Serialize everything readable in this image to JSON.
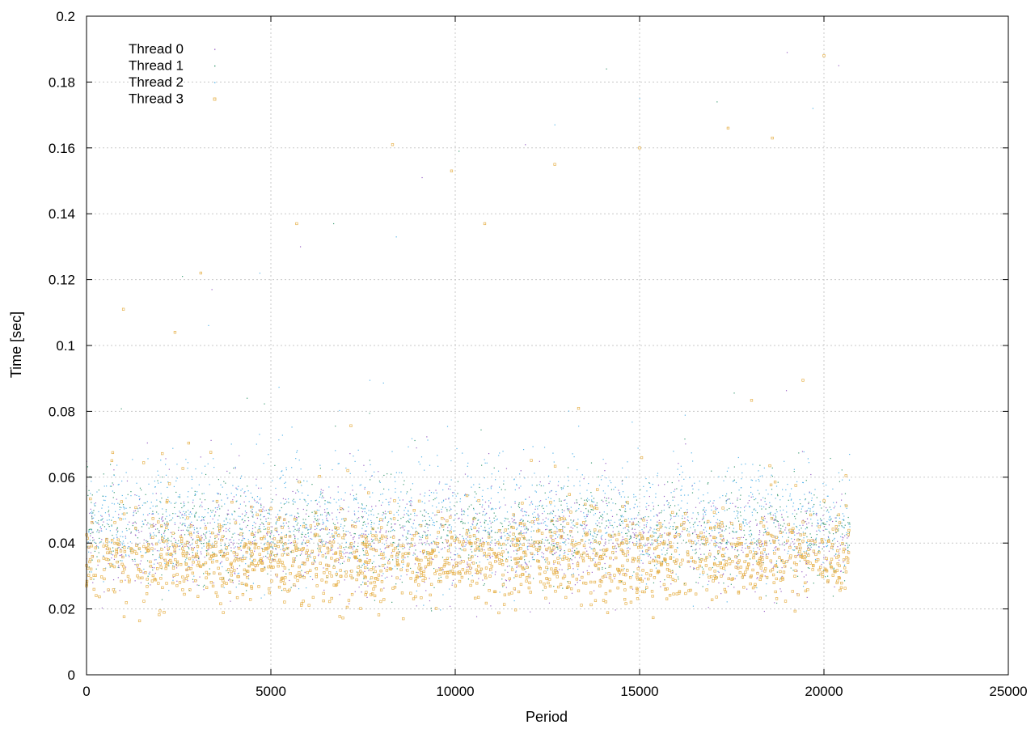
{
  "chart_data": {
    "type": "scatter",
    "xlabel": "Period",
    "ylabel": "Time [sec]",
    "xlim": [
      0,
      25000
    ],
    "ylim": [
      0,
      0.2
    ],
    "x_ticks": [
      0,
      5000,
      10000,
      15000,
      20000,
      25000
    ],
    "y_ticks": [
      0,
      0.02,
      0.04,
      0.06,
      0.08,
      0.1,
      0.12,
      0.14,
      0.16,
      0.18,
      0.2
    ],
    "y_tick_labels": [
      "0",
      "0.02",
      "0.04",
      "0.06",
      "0.08",
      "0.1",
      "0.12",
      "0.14",
      "0.16",
      "0.18",
      "0.2"
    ],
    "grid": true,
    "legend_position": "top-left",
    "x_range_of_data": [
      0,
      20700
    ],
    "series": [
      {
        "name": "Thread 0",
        "color": "#9a63c6",
        "marker": "dot",
        "sample_points": [
          [
            200,
            0.041
          ],
          [
            1200,
            0.043
          ],
          [
            2500,
            0.039
          ],
          [
            4000,
            0.04
          ],
          [
            5500,
            0.042
          ],
          [
            7000,
            0.038
          ],
          [
            8500,
            0.041
          ],
          [
            10000,
            0.04
          ],
          [
            11500,
            0.039
          ],
          [
            13000,
            0.041
          ],
          [
            14500,
            0.04
          ],
          [
            16000,
            0.042
          ],
          [
            17500,
            0.039
          ],
          [
            19000,
            0.04
          ],
          [
            20500,
            0.041
          ],
          [
            3400,
            0.117
          ],
          [
            5800,
            0.13
          ],
          [
            9100,
            0.151
          ],
          [
            11900,
            0.161
          ],
          [
            19000,
            0.189
          ],
          [
            20400,
            0.185
          ]
        ]
      },
      {
        "name": "Thread 1",
        "color": "#3d9c74",
        "marker": "dot",
        "sample_points": [
          [
            300,
            0.044
          ],
          [
            1500,
            0.045
          ],
          [
            3000,
            0.041
          ],
          [
            4500,
            0.043
          ],
          [
            6000,
            0.044
          ],
          [
            7500,
            0.04
          ],
          [
            9000,
            0.043
          ],
          [
            10500,
            0.042
          ],
          [
            12000,
            0.041
          ],
          [
            13500,
            0.043
          ],
          [
            15000,
            0.041
          ],
          [
            16500,
            0.044
          ],
          [
            18000,
            0.042
          ],
          [
            19500,
            0.043
          ],
          [
            20600,
            0.04
          ],
          [
            2600,
            0.121
          ],
          [
            6700,
            0.137
          ],
          [
            10100,
            0.159
          ],
          [
            14100,
            0.184
          ],
          [
            17100,
            0.174
          ]
        ]
      },
      {
        "name": "Thread 2",
        "color": "#56b4e9",
        "marker": "dot",
        "sample_points": [
          [
            400,
            0.047
          ],
          [
            1800,
            0.049
          ],
          [
            3200,
            0.046
          ],
          [
            4800,
            0.048
          ],
          [
            6300,
            0.05
          ],
          [
            7800,
            0.046
          ],
          [
            9300,
            0.048
          ],
          [
            10800,
            0.047
          ],
          [
            12300,
            0.046
          ],
          [
            13800,
            0.049
          ],
          [
            15300,
            0.047
          ],
          [
            16800,
            0.05
          ],
          [
            18300,
            0.048
          ],
          [
            19800,
            0.049
          ],
          [
            20700,
            0.045
          ],
          [
            4700,
            0.122
          ],
          [
            8400,
            0.133
          ],
          [
            12700,
            0.167
          ],
          [
            15000,
            0.175
          ],
          [
            19700,
            0.172
          ]
        ]
      },
      {
        "name": "Thread 3",
        "color": "#e6b14b",
        "marker": "open-square",
        "sample_points": [
          [
            100,
            0.035
          ],
          [
            1000,
            0.033
          ],
          [
            2200,
            0.034
          ],
          [
            3700,
            0.036
          ],
          [
            5200,
            0.033
          ],
          [
            6800,
            0.035
          ],
          [
            8200,
            0.034
          ],
          [
            9700,
            0.033
          ],
          [
            11200,
            0.035
          ],
          [
            12800,
            0.034
          ],
          [
            14200,
            0.033
          ],
          [
            15700,
            0.035
          ],
          [
            17200,
            0.034
          ],
          [
            18700,
            0.033
          ],
          [
            20400,
            0.036
          ],
          [
            1000,
            0.111
          ],
          [
            2400,
            0.104
          ],
          [
            3100,
            0.122
          ],
          [
            5700,
            0.137
          ],
          [
            8300,
            0.161
          ],
          [
            9900,
            0.153
          ],
          [
            10800,
            0.137
          ],
          [
            12700,
            0.155
          ],
          [
            15000,
            0.16
          ],
          [
            17400,
            0.166
          ],
          [
            18600,
            0.163
          ],
          [
            20000,
            0.188
          ]
        ]
      }
    ]
  }
}
